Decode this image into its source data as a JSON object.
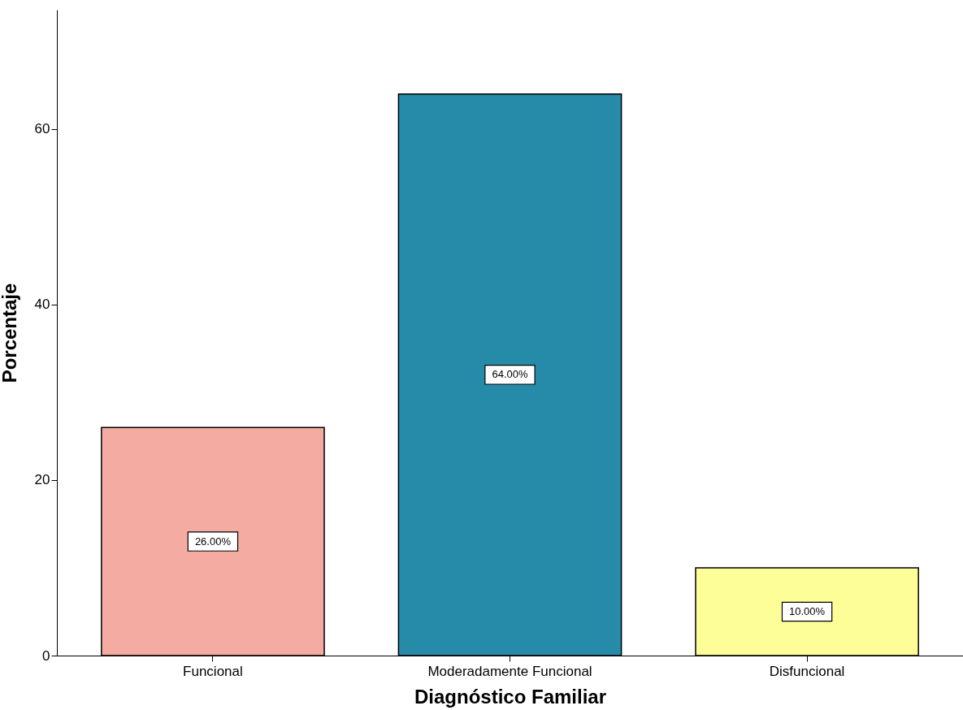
{
  "chart_data": {
    "type": "bar",
    "xlabel": "Diagnóstico Familiar",
    "ylabel": "Porcentaje",
    "categories": [
      "Funcional",
      "Moderadamente Funcional",
      "Disfuncional"
    ],
    "values": [
      26,
      64,
      10
    ],
    "colors": [
      "#f4aca2",
      "#258ba9",
      "#fefe99"
    ],
    "value_labels": [
      "26.00%",
      "64.00%",
      "10.00%"
    ],
    "ylim": [
      0,
      73.6
    ],
    "yticks": [
      0,
      20,
      40,
      60
    ],
    "grid": false,
    "legend": false
  }
}
